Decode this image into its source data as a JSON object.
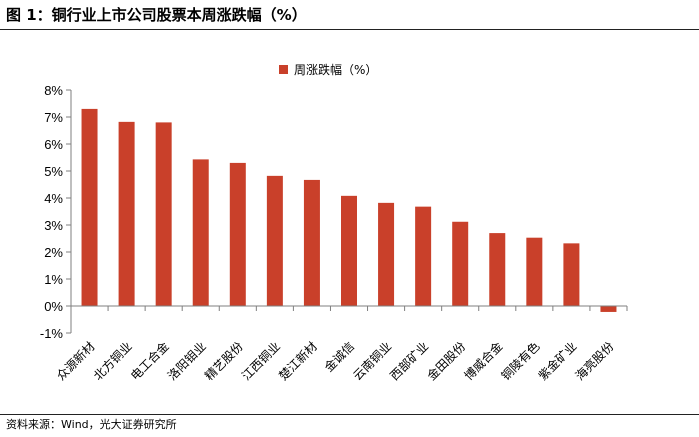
{
  "figure": {
    "title": "图 1：铜行业上市公司股票本周涨跌幅（%）",
    "source": "资料来源：Wind，光大证券研究所"
  },
  "colors": {
    "bar": "#c9402a",
    "axis": "#7f7f7f"
  },
  "chart_data": {
    "type": "bar",
    "title": "",
    "xlabel": "",
    "ylabel": "",
    "ylim": [
      -1,
      8
    ],
    "yticks": [
      "-1%",
      "0%",
      "1%",
      "2%",
      "3%",
      "4%",
      "5%",
      "6%",
      "7%",
      "8%"
    ],
    "grid": false,
    "legend_position": "top-center",
    "categories": [
      "众源新材",
      "北方铜业",
      "电工合金",
      "洛阳钼业",
      "精艺股份",
      "江西铜业",
      "楚江新材",
      "金诚信",
      "云南铜业",
      "西部矿业",
      "金田股份",
      "博威合金",
      "铜陵有色",
      "紫金矿业",
      "海亮股份"
    ],
    "series": [
      {
        "name": "周涨跌幅（%）",
        "values": [
          7.3,
          6.82,
          6.8,
          5.43,
          5.3,
          4.82,
          4.67,
          4.08,
          3.82,
          3.68,
          3.12,
          2.7,
          2.53,
          2.32,
          -0.22
        ]
      }
    ]
  }
}
